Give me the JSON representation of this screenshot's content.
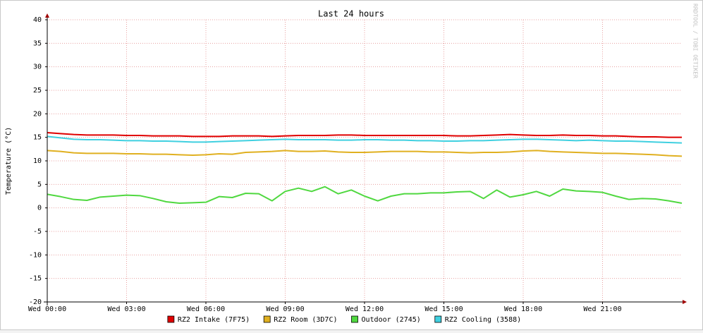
{
  "chart_data": {
    "type": "line",
    "title": "Last 24 hours",
    "y_label": "Temperature (°C)",
    "watermark": "RRDTOOL / TOBI OETIKER",
    "x": [
      0,
      0.5,
      1,
      1.5,
      2,
      2.5,
      3,
      3.5,
      4,
      4.5,
      5,
      5.5,
      6,
      6.5,
      7,
      7.5,
      8,
      8.5,
      9,
      9.5,
      10,
      10.5,
      11,
      11.5,
      12,
      12.5,
      13,
      13.5,
      14,
      14.5,
      15,
      15.5,
      16,
      16.5,
      17,
      17.5,
      18,
      18.5,
      19,
      19.5,
      20,
      20.5,
      21,
      21.5,
      22,
      22.5,
      23,
      23.5,
      24
    ],
    "xlim": [
      0,
      24
    ],
    "xticks": [
      {
        "value": 0,
        "label": "Wed 00:00"
      },
      {
        "value": 3,
        "label": "Wed 03:00"
      },
      {
        "value": 6,
        "label": "Wed 06:00"
      },
      {
        "value": 9,
        "label": "Wed 09:00"
      },
      {
        "value": 12,
        "label": "Wed 12:00"
      },
      {
        "value": 15,
        "label": "Wed 15:00"
      },
      {
        "value": 18,
        "label": "Wed 18:00"
      },
      {
        "value": 21,
        "label": "Wed 21:00"
      }
    ],
    "ylim": [
      -20,
      40
    ],
    "yticks": [
      -20,
      -15,
      -10,
      -5,
      0,
      5,
      10,
      15,
      20,
      25,
      30,
      35,
      40
    ],
    "grid": true,
    "legend": "bottom",
    "series": [
      {
        "name": "RZ2 Intake (7F75)",
        "color": "#e00000",
        "values": [
          16.0,
          15.8,
          15.6,
          15.5,
          15.5,
          15.5,
          15.4,
          15.4,
          15.3,
          15.3,
          15.3,
          15.2,
          15.2,
          15.2,
          15.3,
          15.3,
          15.3,
          15.2,
          15.3,
          15.4,
          15.4,
          15.4,
          15.5,
          15.5,
          15.4,
          15.4,
          15.4,
          15.4,
          15.4,
          15.4,
          15.4,
          15.3,
          15.3,
          15.4,
          15.5,
          15.6,
          15.5,
          15.4,
          15.4,
          15.5,
          15.4,
          15.4,
          15.3,
          15.3,
          15.2,
          15.1,
          15.1,
          15.0,
          15.0
        ]
      },
      {
        "name": "RZ2 Room (3D7C)",
        "color": "#e0b020",
        "values": [
          12.2,
          12.0,
          11.7,
          11.6,
          11.6,
          11.6,
          11.5,
          11.5,
          11.4,
          11.4,
          11.3,
          11.2,
          11.3,
          11.5,
          11.4,
          11.8,
          11.9,
          12.0,
          12.2,
          12.0,
          12.0,
          12.1,
          11.9,
          11.8,
          11.8,
          11.9,
          12.0,
          12.0,
          12.0,
          11.9,
          11.9,
          11.8,
          11.7,
          11.8,
          11.8,
          11.9,
          12.1,
          12.2,
          12.0,
          11.9,
          11.8,
          11.7,
          11.6,
          11.6,
          11.5,
          11.4,
          11.3,
          11.1,
          11.0
        ]
      },
      {
        "name": "Outdoor (2745)",
        "color": "#50d840",
        "values": [
          2.9,
          2.4,
          1.8,
          1.6,
          2.3,
          2.5,
          2.7,
          2.6,
          2.0,
          1.3,
          1.0,
          1.1,
          1.2,
          2.4,
          2.2,
          3.1,
          3.0,
          1.5,
          3.5,
          4.2,
          3.5,
          4.5,
          3.0,
          3.8,
          2.5,
          1.5,
          2.5,
          3.0,
          3.0,
          3.2,
          3.2,
          3.4,
          3.5,
          2.0,
          3.8,
          2.3,
          2.8,
          3.5,
          2.5,
          4.0,
          3.6,
          3.5,
          3.3,
          2.5,
          1.8,
          2.0,
          1.9,
          1.5,
          1.0
        ]
      },
      {
        "name": "RZ2 Cooling (3588)",
        "color": "#40d0e0",
        "values": [
          15.2,
          14.9,
          14.6,
          14.5,
          14.5,
          14.4,
          14.3,
          14.3,
          14.2,
          14.2,
          14.1,
          14.0,
          14.0,
          14.1,
          14.2,
          14.3,
          14.4,
          14.5,
          14.6,
          14.5,
          14.5,
          14.5,
          14.4,
          14.4,
          14.5,
          14.5,
          14.4,
          14.4,
          14.3,
          14.3,
          14.2,
          14.2,
          14.3,
          14.3,
          14.4,
          14.5,
          14.6,
          14.6,
          14.5,
          14.4,
          14.3,
          14.4,
          14.3,
          14.2,
          14.2,
          14.1,
          14.0,
          13.9,
          13.8
        ]
      }
    ]
  }
}
